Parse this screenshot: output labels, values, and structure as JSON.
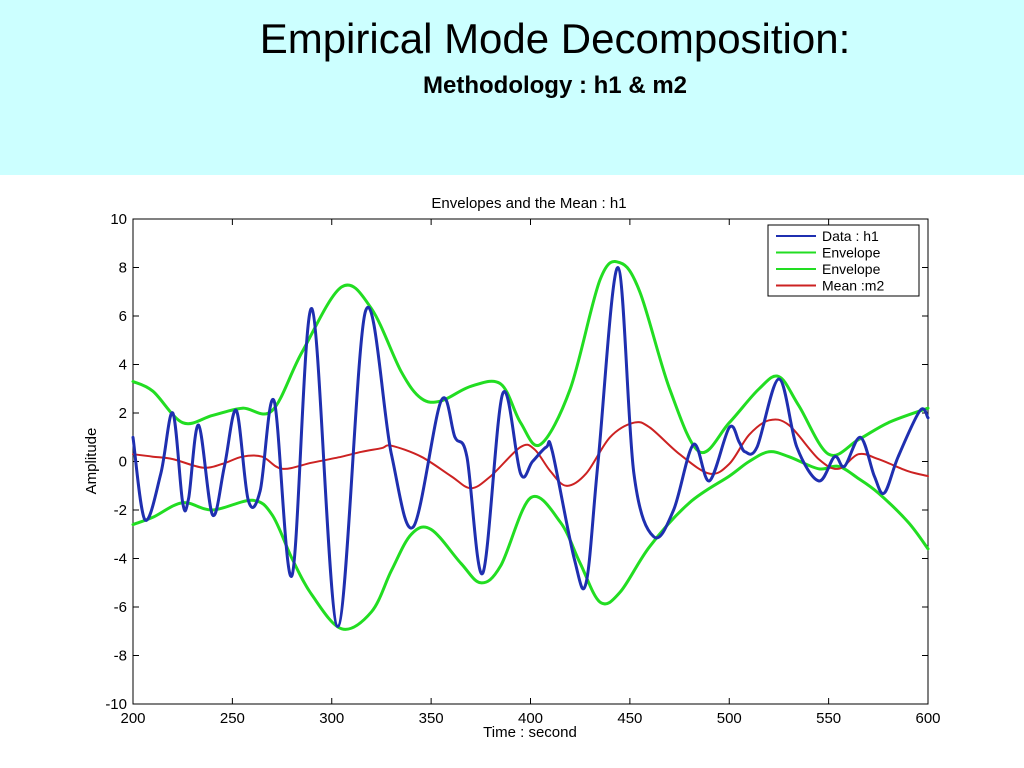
{
  "slide": {
    "title": "Empirical Mode Decomposition:",
    "subtitle": "Methodology : h1 & m2",
    "header_background": "#ccffff"
  },
  "chart_data": {
    "type": "line",
    "title": "Envelopes and the Mean : h1",
    "xlabel": "Time : second",
    "ylabel": "Amplitude",
    "xlim": [
      200,
      600
    ],
    "ylim": [
      -10,
      10
    ],
    "xticks": [
      200,
      250,
      300,
      350,
      400,
      450,
      500,
      550,
      600
    ],
    "yticks": [
      10,
      8,
      6,
      4,
      2,
      0,
      -2,
      -4,
      -6,
      -8,
      -10
    ],
    "grid": false,
    "legend_position": "top-right",
    "series": [
      {
        "name": "Data : h1",
        "color": "#1f2fb0",
        "width": 3,
        "x": [
          200,
          206,
          214,
          220,
          225,
          228,
          233,
          240,
          246,
          252,
          258,
          264,
          271,
          280,
          290,
          303,
          317,
          330,
          341,
          355,
          362,
          368,
          376,
          386,
          395,
          401,
          408,
          411,
          422,
          428,
          434,
          444,
          452,
          462,
          472,
          482,
          490,
          500,
          505,
          508,
          514,
          525,
          534,
          545,
          553,
          558,
          566,
          573,
          578,
          585,
          596,
          600
        ],
        "y": [
          1.0,
          -2.4,
          -0.5,
          2.0,
          -1.7,
          -1.5,
          1.5,
          -2.2,
          -0.2,
          2.1,
          -1.6,
          -1.2,
          2.5,
          -4.7,
          6.3,
          -6.8,
          6.2,
          0.3,
          -2.7,
          2.5,
          1.0,
          0.2,
          -4.6,
          2.8,
          -0.5,
          0.0,
          0.6,
          0.4,
          -4.0,
          -5.0,
          0.0,
          8.0,
          -0.5,
          -3.1,
          -2.0,
          0.7,
          -0.8,
          1.4,
          0.8,
          0.4,
          0.6,
          3.4,
          0.6,
          -0.8,
          0.2,
          -0.2,
          1.0,
          -0.6,
          -1.3,
          0.2,
          2.1,
          1.8
        ]
      },
      {
        "name": "Envelope",
        "color": "#22dd22",
        "width": 3,
        "x": [
          200,
          210,
          225,
          240,
          255,
          270,
          285,
          305,
          320,
          335,
          345,
          355,
          370,
          385,
          395,
          405,
          420,
          435,
          445,
          455,
          470,
          485,
          500,
          515,
          525,
          535,
          550,
          565,
          580,
          600
        ],
        "y": [
          3.3,
          2.9,
          1.6,
          1.9,
          2.2,
          2.1,
          4.5,
          7.2,
          6.3,
          3.7,
          2.6,
          2.5,
          3.1,
          3.2,
          1.6,
          0.7,
          3.0,
          7.5,
          8.2,
          7.0,
          3.0,
          0.4,
          1.6,
          3.0,
          3.5,
          2.3,
          0.3,
          0.9,
          1.6,
          2.2
        ]
      },
      {
        "name": "Envelope",
        "color": "#22dd22",
        "width": 3,
        "x": [
          200,
          210,
          225,
          240,
          260,
          270,
          280,
          290,
          305,
          320,
          330,
          340,
          350,
          365,
          375,
          385,
          400,
          415,
          425,
          435,
          445,
          460,
          480,
          500,
          510,
          520,
          530,
          545,
          555,
          565,
          575,
          590,
          600
        ],
        "y": [
          -2.6,
          -2.3,
          -1.7,
          -2.0,
          -1.6,
          -2.2,
          -4.0,
          -5.5,
          -6.9,
          -6.2,
          -4.5,
          -3.0,
          -2.8,
          -4.2,
          -5.0,
          -4.3,
          -1.5,
          -2.5,
          -4.2,
          -5.8,
          -5.4,
          -3.5,
          -1.7,
          -0.6,
          0.0,
          0.4,
          0.2,
          -0.3,
          -0.2,
          -0.7,
          -1.3,
          -2.5,
          -3.6
        ]
      },
      {
        "name": "Mean :m2",
        "color": "#cc2222",
        "width": 2,
        "x": [
          200,
          210,
          220,
          235,
          245,
          255,
          265,
          275,
          290,
          305,
          315,
          325,
          330,
          345,
          360,
          370,
          380,
          395,
          402,
          410,
          418,
          428,
          440,
          452,
          460,
          475,
          490,
          500,
          510,
          520,
          530,
          545,
          555,
          565,
          575,
          590,
          600
        ],
        "y": [
          0.3,
          0.2,
          0.1,
          -0.25,
          -0.1,
          0.2,
          0.2,
          -0.3,
          -0.05,
          0.2,
          0.4,
          0.55,
          0.65,
          0.2,
          -0.6,
          -1.1,
          -0.6,
          0.6,
          0.5,
          -0.4,
          -1.0,
          -0.5,
          1.0,
          1.6,
          1.4,
          0.3,
          -0.5,
          -0.1,
          1.1,
          1.7,
          1.5,
          0.1,
          -0.3,
          0.3,
          0.1,
          -0.4,
          -0.6
        ]
      }
    ]
  }
}
